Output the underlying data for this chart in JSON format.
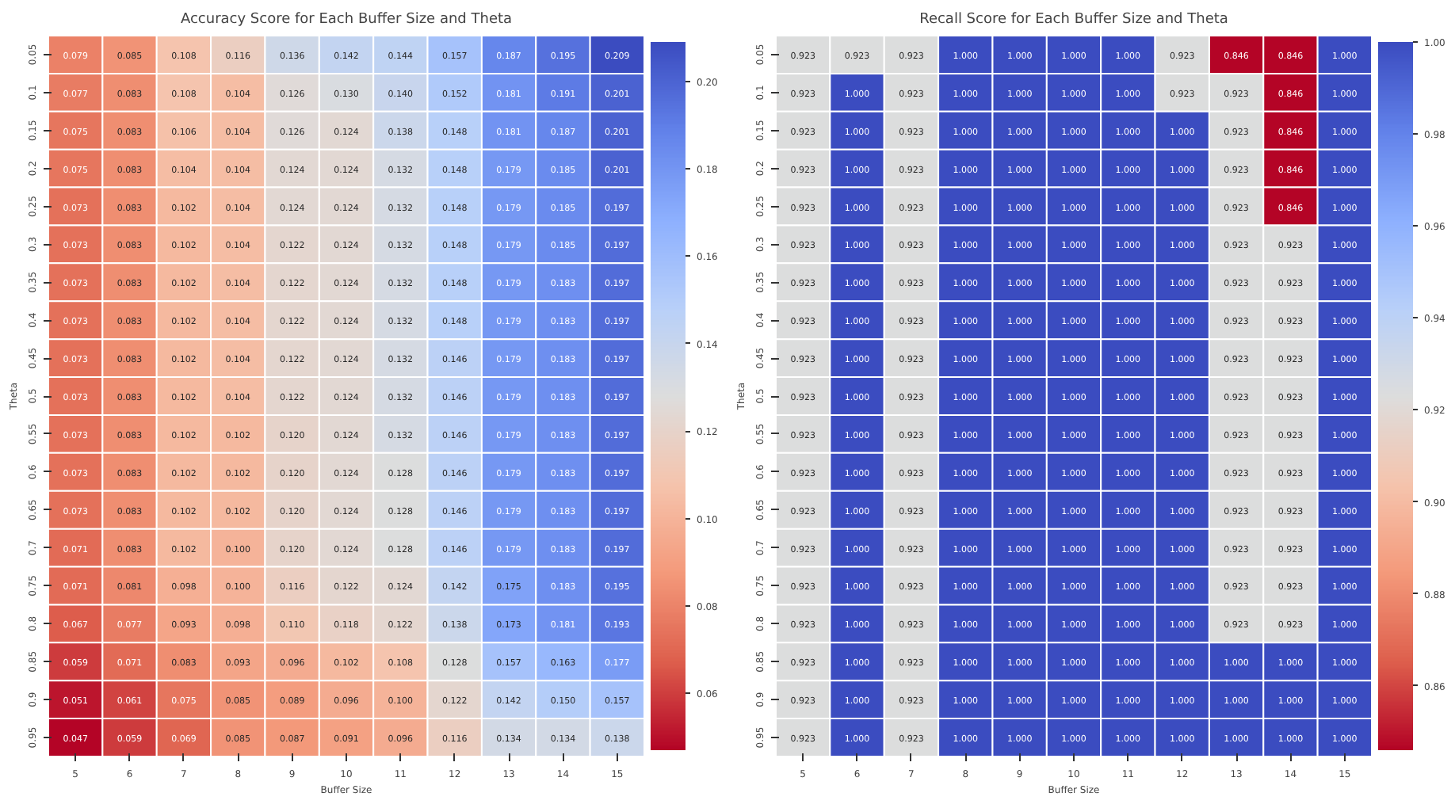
{
  "chart_data": [
    {
      "type": "heatmap",
      "title": "Accuracy Score for Each Buffer Size and Theta",
      "xlabel": "Buffer Size",
      "ylabel": "Theta",
      "categories": [
        "5",
        "6",
        "7",
        "8",
        "9",
        "10",
        "11",
        "12",
        "13",
        "14",
        "15"
      ],
      "y_categories": [
        "0.05",
        "0.1",
        "0.15",
        "0.2",
        "0.25",
        "0.3",
        "0.35",
        "0.4",
        "0.45",
        "0.5",
        "0.55",
        "0.6",
        "0.65",
        "0.7",
        "0.75",
        "0.8",
        "0.85",
        "0.9",
        "0.95"
      ],
      "cells": [
        [
          0.079,
          0.085,
          0.108,
          0.116,
          0.136,
          0.142,
          0.144,
          0.157,
          0.187,
          0.195,
          0.209
        ],
        [
          0.077,
          0.083,
          0.108,
          0.104,
          0.126,
          0.13,
          0.14,
          0.152,
          0.181,
          0.191,
          0.201
        ],
        [
          0.075,
          0.083,
          0.106,
          0.104,
          0.126,
          0.124,
          0.138,
          0.148,
          0.181,
          0.187,
          0.201
        ],
        [
          0.075,
          0.083,
          0.104,
          0.104,
          0.124,
          0.124,
          0.132,
          0.148,
          0.179,
          0.185,
          0.201
        ],
        [
          0.073,
          0.083,
          0.102,
          0.104,
          0.124,
          0.124,
          0.132,
          0.148,
          0.179,
          0.185,
          0.197
        ],
        [
          0.073,
          0.083,
          0.102,
          0.104,
          0.122,
          0.124,
          0.132,
          0.148,
          0.179,
          0.185,
          0.197
        ],
        [
          0.073,
          0.083,
          0.102,
          0.104,
          0.122,
          0.124,
          0.132,
          0.148,
          0.179,
          0.183,
          0.197
        ],
        [
          0.073,
          0.083,
          0.102,
          0.104,
          0.122,
          0.124,
          0.132,
          0.148,
          0.179,
          0.183,
          0.197
        ],
        [
          0.073,
          0.083,
          0.102,
          0.104,
          0.122,
          0.124,
          0.132,
          0.146,
          0.179,
          0.183,
          0.197
        ],
        [
          0.073,
          0.083,
          0.102,
          0.104,
          0.122,
          0.124,
          0.132,
          0.146,
          0.179,
          0.183,
          0.197
        ],
        [
          0.073,
          0.083,
          0.102,
          0.102,
          0.12,
          0.124,
          0.132,
          0.146,
          0.179,
          0.183,
          0.197
        ],
        [
          0.073,
          0.083,
          0.102,
          0.102,
          0.12,
          0.124,
          0.128,
          0.146,
          0.179,
          0.183,
          0.197
        ],
        [
          0.073,
          0.083,
          0.102,
          0.102,
          0.12,
          0.124,
          0.128,
          0.146,
          0.179,
          0.183,
          0.197
        ],
        [
          0.071,
          0.083,
          0.102,
          0.1,
          0.12,
          0.124,
          0.128,
          0.146,
          0.179,
          0.183,
          0.197
        ],
        [
          0.071,
          0.081,
          0.098,
          0.1,
          0.116,
          0.122,
          0.124,
          0.142,
          0.175,
          0.183,
          0.195
        ],
        [
          0.067,
          0.077,
          0.093,
          0.098,
          0.11,
          0.118,
          0.122,
          0.138,
          0.173,
          0.181,
          0.193
        ],
        [
          0.059,
          0.071,
          0.083,
          0.093,
          0.096,
          0.102,
          0.108,
          0.128,
          0.157,
          0.163,
          0.177
        ],
        [
          0.051,
          0.061,
          0.075,
          0.085,
          0.089,
          0.096,
          0.1,
          0.122,
          0.142,
          0.15,
          0.157
        ],
        [
          0.047,
          0.059,
          0.069,
          0.085,
          0.087,
          0.091,
          0.096,
          0.116,
          0.134,
          0.134,
          0.138
        ]
      ],
      "cell_labels": [
        [
          "0.079",
          "0.085",
          "0.108",
          "0.116",
          "0.136",
          "0.142",
          "0.144",
          "0.157",
          "0.187",
          "0.195",
          "0.209"
        ],
        [
          "0.077",
          "0.083",
          "0.108",
          "0.104",
          "0.126",
          "0.130",
          "0.140",
          "0.152",
          "0.181",
          "0.191",
          "0.201"
        ],
        [
          "0.075",
          "0.083",
          "0.106",
          "0.104",
          "0.126",
          "0.124",
          "0.138",
          "0.148",
          "0.181",
          "0.187",
          "0.201"
        ],
        [
          "0.075",
          "0.083",
          "0.104",
          "0.104",
          "0.124",
          "0.124",
          "0.132",
          "0.148",
          "0.179",
          "0.185",
          "0.201"
        ],
        [
          "0.073",
          "0.083",
          "0.102",
          "0.104",
          "0.124",
          "0.124",
          "0.132",
          "0.148",
          "0.179",
          "0.185",
          "0.197"
        ],
        [
          "0.073",
          "0.083",
          "0.102",
          "0.104",
          "0.122",
          "0.124",
          "0.132",
          "0.148",
          "0.179",
          "0.185",
          "0.197"
        ],
        [
          "0.073",
          "0.083",
          "0.102",
          "0.104",
          "0.122",
          "0.124",
          "0.132",
          "0.148",
          "0.179",
          "0.183",
          "0.197"
        ],
        [
          "0.073",
          "0.083",
          "0.102",
          "0.104",
          "0.122",
          "0.124",
          "0.132",
          "0.148",
          "0.179",
          "0.183",
          "0.197"
        ],
        [
          "0.073",
          "0.083",
          "0.102",
          "0.104",
          "0.122",
          "0.124",
          "0.132",
          "0.146",
          "0.179",
          "0.183",
          "0.197"
        ],
        [
          "0.073",
          "0.083",
          "0.102",
          "0.104",
          "0.122",
          "0.124",
          "0.132",
          "0.146",
          "0.179",
          "0.183",
          "0.197"
        ],
        [
          "0.073",
          "0.083",
          "0.102",
          "0.102",
          "0.120",
          "0.124",
          "0.132",
          "0.146",
          "0.179",
          "0.183",
          "0.197"
        ],
        [
          "0.073",
          "0.083",
          "0.102",
          "0.102",
          "0.120",
          "0.124",
          "0.128",
          "0.146",
          "0.179",
          "0.183",
          "0.197"
        ],
        [
          "0.073",
          "0.083",
          "0.102",
          "0.102",
          "0.120",
          "0.124",
          "0.128",
          "0.146",
          "0.179",
          "0.183",
          "0.197"
        ],
        [
          "0.071",
          "0.083",
          "0.102",
          "0.100",
          "0.120",
          "0.124",
          "0.128",
          "0.146",
          "0.179",
          "0.183",
          "0.197"
        ],
        [
          "0.071",
          "0.081",
          "0.098",
          "0.100",
          "0.116",
          "0.122",
          "0.124",
          "0.142",
          "0.175",
          "0.183",
          "0.195"
        ],
        [
          "0.067",
          "0.077",
          "0.093",
          "0.098",
          "0.110",
          "0.118",
          "0.122",
          "0.138",
          "0.173",
          "0.181",
          "0.193"
        ],
        [
          "0.059",
          "0.071",
          "0.083",
          "0.093",
          "0.096",
          "0.102",
          "0.108",
          "0.128",
          "0.157",
          "0.163",
          "0.177"
        ],
        [
          "0.051",
          "0.061",
          "0.075",
          "0.085",
          "0.089",
          "0.096",
          "0.100",
          "0.122",
          "0.142",
          "0.150",
          "0.157"
        ],
        [
          "0.047",
          "0.059",
          "0.069",
          "0.085",
          "0.087",
          "0.091",
          "0.096",
          "0.116",
          "0.134",
          "0.134",
          "0.138"
        ]
      ],
      "data_labels": true,
      "clim": [
        0.047,
        0.209
      ],
      "cticks": [
        0.06,
        0.08,
        {
          "value": 0.1,
          "label": "0.10"
        },
        0.12,
        0.14,
        0.16,
        0.18,
        {
          "value": 0.2,
          "label": "0.20"
        }
      ]
    },
    {
      "type": "heatmap",
      "title": "Recall Score for Each Buffer Size and Theta",
      "xlabel": "Buffer Size",
      "ylabel": "Theta",
      "categories": [
        "5",
        "6",
        "7",
        "8",
        "9",
        "10",
        "11",
        "12",
        "13",
        "14",
        "15"
      ],
      "y_categories": [
        "0.05",
        "0.1",
        "0.15",
        "0.2",
        "0.25",
        "0.3",
        "0.35",
        "0.4",
        "0.45",
        "0.5",
        "0.55",
        "0.6",
        "0.65",
        "0.7",
        "0.75",
        "0.8",
        "0.85",
        "0.9",
        "0.95"
      ],
      "cells": [
        [
          0.923,
          0.923,
          0.923,
          1,
          1,
          1,
          1,
          0.923,
          0.846,
          0.846,
          1
        ],
        [
          0.923,
          1,
          0.923,
          1,
          1,
          1,
          1,
          0.923,
          0.923,
          0.846,
          1
        ],
        [
          0.923,
          1,
          0.923,
          1,
          1,
          1,
          1,
          1,
          0.923,
          0.846,
          1
        ],
        [
          0.923,
          1,
          0.923,
          1,
          1,
          1,
          1,
          1,
          0.923,
          0.846,
          1
        ],
        [
          0.923,
          1,
          0.923,
          1,
          1,
          1,
          1,
          1,
          0.923,
          0.846,
          1
        ],
        [
          0.923,
          1,
          0.923,
          1,
          1,
          1,
          1,
          1,
          0.923,
          0.923,
          1
        ],
        [
          0.923,
          1,
          0.923,
          1,
          1,
          1,
          1,
          1,
          0.923,
          0.923,
          1
        ],
        [
          0.923,
          1,
          0.923,
          1,
          1,
          1,
          1,
          1,
          0.923,
          0.923,
          1
        ],
        [
          0.923,
          1,
          0.923,
          1,
          1,
          1,
          1,
          1,
          0.923,
          0.923,
          1
        ],
        [
          0.923,
          1,
          0.923,
          1,
          1,
          1,
          1,
          1,
          0.923,
          0.923,
          1
        ],
        [
          0.923,
          1,
          0.923,
          1,
          1,
          1,
          1,
          1,
          0.923,
          0.923,
          1
        ],
        [
          0.923,
          1,
          0.923,
          1,
          1,
          1,
          1,
          1,
          0.923,
          0.923,
          1
        ],
        [
          0.923,
          1,
          0.923,
          1,
          1,
          1,
          1,
          1,
          0.923,
          0.923,
          1
        ],
        [
          0.923,
          1,
          0.923,
          1,
          1,
          1,
          1,
          1,
          0.923,
          0.923,
          1
        ],
        [
          0.923,
          1,
          0.923,
          1,
          1,
          1,
          1,
          1,
          0.923,
          0.923,
          1
        ],
        [
          0.923,
          1,
          0.923,
          1,
          1,
          1,
          1,
          1,
          0.923,
          0.923,
          1
        ],
        [
          0.923,
          1,
          0.923,
          1,
          1,
          1,
          1,
          1,
          1,
          1,
          1
        ],
        [
          0.923,
          1,
          0.923,
          1,
          1,
          1,
          1,
          1,
          1,
          1,
          1
        ],
        [
          0.923,
          1,
          0.923,
          1,
          1,
          1,
          1,
          1,
          1,
          1,
          1
        ]
      ],
      "cell_labels": [
        [
          "0.923",
          "0.923",
          "0.923",
          "1.000",
          "1.000",
          "1.000",
          "1.000",
          "0.923",
          "0.846",
          "0.846",
          "1.000"
        ],
        [
          "0.923",
          "1.000",
          "0.923",
          "1.000",
          "1.000",
          "1.000",
          "1.000",
          "0.923",
          "0.923",
          "0.846",
          "1.000"
        ],
        [
          "0.923",
          "1.000",
          "0.923",
          "1.000",
          "1.000",
          "1.000",
          "1.000",
          "1.000",
          "0.923",
          "0.846",
          "1.000"
        ],
        [
          "0.923",
          "1.000",
          "0.923",
          "1.000",
          "1.000",
          "1.000",
          "1.000",
          "1.000",
          "0.923",
          "0.846",
          "1.000"
        ],
        [
          "0.923",
          "1.000",
          "0.923",
          "1.000",
          "1.000",
          "1.000",
          "1.000",
          "1.000",
          "0.923",
          "0.846",
          "1.000"
        ],
        [
          "0.923",
          "1.000",
          "0.923",
          "1.000",
          "1.000",
          "1.000",
          "1.000",
          "1.000",
          "0.923",
          "0.923",
          "1.000"
        ],
        [
          "0.923",
          "1.000",
          "0.923",
          "1.000",
          "1.000",
          "1.000",
          "1.000",
          "1.000",
          "0.923",
          "0.923",
          "1.000"
        ],
        [
          "0.923",
          "1.000",
          "0.923",
          "1.000",
          "1.000",
          "1.000",
          "1.000",
          "1.000",
          "0.923",
          "0.923",
          "1.000"
        ],
        [
          "0.923",
          "1.000",
          "0.923",
          "1.000",
          "1.000",
          "1.000",
          "1.000",
          "1.000",
          "0.923",
          "0.923",
          "1.000"
        ],
        [
          "0.923",
          "1.000",
          "0.923",
          "1.000",
          "1.000",
          "1.000",
          "1.000",
          "1.000",
          "0.923",
          "0.923",
          "1.000"
        ],
        [
          "0.923",
          "1.000",
          "0.923",
          "1.000",
          "1.000",
          "1.000",
          "1.000",
          "1.000",
          "0.923",
          "0.923",
          "1.000"
        ],
        [
          "0.923",
          "1.000",
          "0.923",
          "1.000",
          "1.000",
          "1.000",
          "1.000",
          "1.000",
          "0.923",
          "0.923",
          "1.000"
        ],
        [
          "0.923",
          "1.000",
          "0.923",
          "1.000",
          "1.000",
          "1.000",
          "1.000",
          "1.000",
          "0.923",
          "0.923",
          "1.000"
        ],
        [
          "0.923",
          "1.000",
          "0.923",
          "1.000",
          "1.000",
          "1.000",
          "1.000",
          "1.000",
          "0.923",
          "0.923",
          "1.000"
        ],
        [
          "0.923",
          "1.000",
          "0.923",
          "1.000",
          "1.000",
          "1.000",
          "1.000",
          "1.000",
          "0.923",
          "0.923",
          "1.000"
        ],
        [
          "0.923",
          "1.000",
          "0.923",
          "1.000",
          "1.000",
          "1.000",
          "1.000",
          "1.000",
          "0.923",
          "0.923",
          "1.000"
        ],
        [
          "0.923",
          "1.000",
          "0.923",
          "1.000",
          "1.000",
          "1.000",
          "1.000",
          "1.000",
          "1.000",
          "1.000",
          "1.000"
        ],
        [
          "0.923",
          "1.000",
          "0.923",
          "1.000",
          "1.000",
          "1.000",
          "1.000",
          "1.000",
          "1.000",
          "1.000",
          "1.000"
        ],
        [
          "0.923",
          "1.000",
          "0.923",
          "1.000",
          "1.000",
          "1.000",
          "1.000",
          "1.000",
          "1.000",
          "1.000",
          "1.000"
        ]
      ],
      "data_labels": true,
      "clim": [
        0.846,
        1.0
      ],
      "cticks": [
        0.86,
        0.88,
        {
          "value": 0.9,
          "label": "0.90"
        },
        0.92,
        0.94,
        0.96,
        0.98,
        {
          "value": 1.0,
          "label": "1.00"
        }
      ]
    }
  ]
}
